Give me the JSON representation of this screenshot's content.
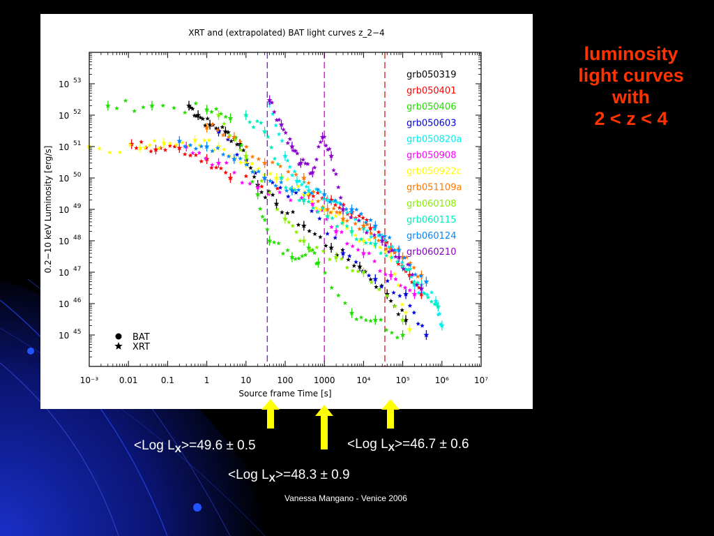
{
  "slide": {
    "title_lines": [
      "luminosity",
      "light curves",
      "with",
      "2 < z < 4"
    ],
    "annotations": [
      {
        "pre": "<Log L",
        "sub": "X",
        "post": ">=49.6 ± 0.5"
      },
      {
        "pre": "<Log L",
        "sub": "X",
        "post": ">=48.3 ± 0.9"
      },
      {
        "pre": "<Log L",
        "sub": "X",
        "post": ">=46.7 ± 0.6"
      }
    ],
    "credit": "Vanessa Mangano - Venice 2006",
    "arrow_color": "#ffff00",
    "title_color": "#ff3300"
  },
  "chart_data": {
    "type": "scatter",
    "title": "XRT and (extrapolated) BAT light curves z_2−4",
    "xlabel": "Source frame Time [s]",
    "ylabel": "0.2−10 keV Luminosity [erg/s]",
    "xscale": "log",
    "yscale": "log",
    "xlim": [
      0.001,
      10000000
    ],
    "ylim": [
      1e+44,
      1e+54
    ],
    "x_ticks": [
      "10⁻³",
      "0.01",
      "0.1",
      "1",
      "10",
      "100",
      "1000",
      "10⁴",
      "10⁵",
      "10⁶",
      "10⁷"
    ],
    "y_tick_mantissa": "10",
    "y_tick_exponents": [
      "45",
      "46",
      "47",
      "48",
      "49",
      "50",
      "51",
      "52",
      "53"
    ],
    "vertical_lines": [
      {
        "x": 35,
        "color": "#8822cc",
        "style": "dashed"
      },
      {
        "x": 1000,
        "color": "#ee00ee",
        "style": "dashed"
      },
      {
        "x": 35000,
        "color": "#dd2222",
        "style": "dashed"
      }
    ],
    "marker_legend": [
      {
        "symbol": "circle",
        "label": "BAT"
      },
      {
        "symbol": "star",
        "label": "XRT"
      }
    ],
    "series": [
      {
        "name": "grb050319",
        "color": "#000000",
        "points": [
          [
            0.35,
            2e+52
          ],
          [
            0.6,
            1e+52
          ],
          [
            1.2,
            5e+51
          ],
          [
            3,
            3e+51
          ],
          [
            7,
            1.2e+51
          ],
          [
            20,
            6e+49
          ],
          [
            60,
            1.5e+49
          ],
          [
            300,
            3e+48
          ],
          [
            1500,
            6e+47
          ],
          [
            8000,
            1.5e+47
          ],
          [
            40000,
            2e+46
          ],
          [
            120000,
            3e+45
          ]
        ]
      },
      {
        "name": "grb050401",
        "color": "#ff0000",
        "points": [
          [
            0.012,
            1.2e+51
          ],
          [
            0.05,
            8e+50
          ],
          [
            0.2,
            9e+50
          ],
          [
            1,
            4e+50
          ],
          [
            4,
            1e+50
          ],
          [
            400,
            3e+49
          ],
          [
            1500,
            2e+49
          ],
          [
            5000,
            8e+48
          ],
          [
            15000,
            2.5e+48
          ],
          [
            50000,
            6e+47
          ],
          [
            150000,
            8e+46
          ],
          [
            300000,
            2e+46
          ]
        ]
      },
      {
        "name": "grb050406",
        "color": "#22dd00",
        "points": [
          [
            0.003,
            2e+52
          ],
          [
            0.04,
            2e+52
          ],
          [
            1,
            1.5e+52
          ],
          [
            4,
            8e+51
          ],
          [
            20,
            3e+49
          ],
          [
            40,
            1e+48
          ],
          [
            150,
            3e+47
          ],
          [
            400,
            6e+47
          ],
          [
            700,
            2e+47
          ],
          [
            5000,
            5e+45
          ],
          [
            20000,
            3e+45
          ],
          [
            100000,
            1e+45
          ]
        ]
      },
      {
        "name": "grb050603",
        "color": "#0000dd",
        "points": [
          [
            2,
            3e+51
          ],
          [
            30,
            1e+50
          ],
          [
            300,
            2e+49
          ],
          [
            3000,
            4e+47
          ],
          [
            20000,
            6e+46
          ],
          [
            120000,
            2e+46
          ],
          [
            400000,
            1e+45
          ]
        ]
      },
      {
        "name": "grb050820a",
        "color": "#00eeee",
        "points": [
          [
            40,
            2.5e+52
          ],
          [
            100,
            5e+50
          ],
          [
            200,
            8e+49
          ],
          [
            400,
            4e+49
          ],
          [
            1200,
            2e+49
          ],
          [
            3000,
            1e+49
          ],
          [
            10000,
            2.5e+48
          ],
          [
            30000,
            1.2e+48
          ],
          [
            80000,
            3e+47
          ],
          [
            200000,
            4e+46
          ],
          [
            700000,
            1.2e+46
          ],
          [
            1000000,
            2e+45
          ]
        ]
      },
      {
        "name": "grb050908",
        "color": "#ff00ff",
        "points": [
          [
            0.3,
            1e+51
          ],
          [
            2,
            3e+50
          ],
          [
            20,
            5e+49
          ],
          [
            500,
            1.5e+49
          ],
          [
            2000,
            2e+48
          ],
          [
            10000,
            4e+47
          ],
          [
            50000,
            8e+46
          ],
          [
            200000,
            2e+46
          ]
        ]
      },
      {
        "name": "grb050922c",
        "color": "#ffff00",
        "points": [
          [
            0.001,
            1e+51
          ],
          [
            0.02,
            9e+50
          ],
          [
            0.08,
            1.3e+51
          ],
          [
            0.5,
            1.6e+51
          ],
          [
            2,
            1e+51
          ],
          [
            10,
            3e+50
          ],
          [
            60,
            1e+50
          ],
          [
            300,
            3e+49
          ],
          [
            1000,
            1e+49
          ],
          [
            3000,
            4e+48
          ],
          [
            10000,
            1e+48
          ],
          [
            50000,
            3e+47
          ],
          [
            150000,
            1.5e+45
          ]
        ]
      },
      {
        "name": "grb051109a",
        "color": "#ff7700",
        "points": [
          [
            1,
            4e+51
          ],
          [
            5,
            2e+51
          ],
          [
            30,
            3e+50
          ],
          [
            300,
            1e+50
          ],
          [
            1200,
            1e+49
          ],
          [
            3000,
            5e+48
          ],
          [
            10000,
            3e+48
          ],
          [
            30000,
            1e+48
          ],
          [
            100000,
            3e+47
          ],
          [
            300000,
            8e+46
          ]
        ]
      },
      {
        "name": "grb060108",
        "color": "#88ee00",
        "points": [
          [
            2,
            1e+52
          ],
          [
            10,
            5e+50
          ],
          [
            100,
            5e+48
          ],
          [
            300,
            1e+48
          ],
          [
            2000,
            3e+47
          ],
          [
            10000,
            1e+47
          ],
          [
            100000,
            3e+45
          ]
        ]
      },
      {
        "name": "grb060115",
        "color": "#00eebb",
        "points": [
          [
            10,
            1e+52
          ],
          [
            30,
            3e+51
          ],
          [
            80,
            1e+50
          ],
          [
            300,
            2e+49
          ],
          [
            1200,
            6e+48
          ],
          [
            5000,
            2e+48
          ],
          [
            20000,
            8e+47
          ],
          [
            100000,
            1.5e+47
          ],
          [
            300000,
            4e+46
          ],
          [
            800000,
            8e+45
          ]
        ]
      },
      {
        "name": "grb060124",
        "color": "#0088ff",
        "points": [
          [
            0.2,
            1.5e+51
          ],
          [
            1,
            1e+51
          ],
          [
            5,
            4e+50
          ],
          [
            30,
            1e+50
          ],
          [
            150,
            4e+49
          ],
          [
            1000,
            3e+49
          ],
          [
            5000,
            1e+49
          ],
          [
            20000,
            3e+48
          ],
          [
            80000,
            5e+47
          ],
          [
            400000,
            5e+46
          ]
        ]
      },
      {
        "name": "grb060210",
        "color": "#8800cc",
        "points": [
          [
            40,
            3e+52
          ],
          [
            80,
            5e+51
          ],
          [
            150,
            1e+51
          ],
          [
            250,
            3e+50
          ],
          [
            500,
            1.5e+50
          ],
          [
            900,
            2e+51
          ],
          [
            1500,
            5e+50
          ],
          [
            3000,
            1e+49
          ],
          [
            30000,
            1e+48
          ],
          [
            80000,
            3e+47
          ],
          [
            300000,
            3e+46
          ]
        ]
      }
    ]
  }
}
